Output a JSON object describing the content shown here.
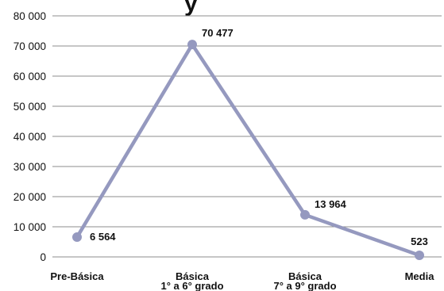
{
  "chart_data": {
    "type": "line",
    "title_fragment": "y",
    "categories": [
      [
        "Pre-Básica"
      ],
      [
        "Básica",
        "1° a 6° grado"
      ],
      [
        "Básica",
        "7° a 9° grado"
      ],
      [
        "Media"
      ]
    ],
    "series": [
      {
        "values": [
          6564,
          70477,
          13964,
          523
        ],
        "labels": [
          "6 564",
          "70 477",
          "13 964",
          "523"
        ],
        "color": "#9599BF"
      }
    ],
    "ylim": [
      0,
      80000
    ],
    "yticks": [
      0,
      10000,
      20000,
      30000,
      40000,
      50000,
      60000,
      70000,
      80000
    ],
    "ytick_labels": [
      "0",
      "10 000",
      "20 000",
      "30 000",
      "40 000",
      "50 000",
      "60 000",
      "70 000",
      "80 000"
    ],
    "grid": true,
    "colors": {
      "line": "#9599BF",
      "grid": "#8c8c8c",
      "text": "#111111"
    }
  }
}
